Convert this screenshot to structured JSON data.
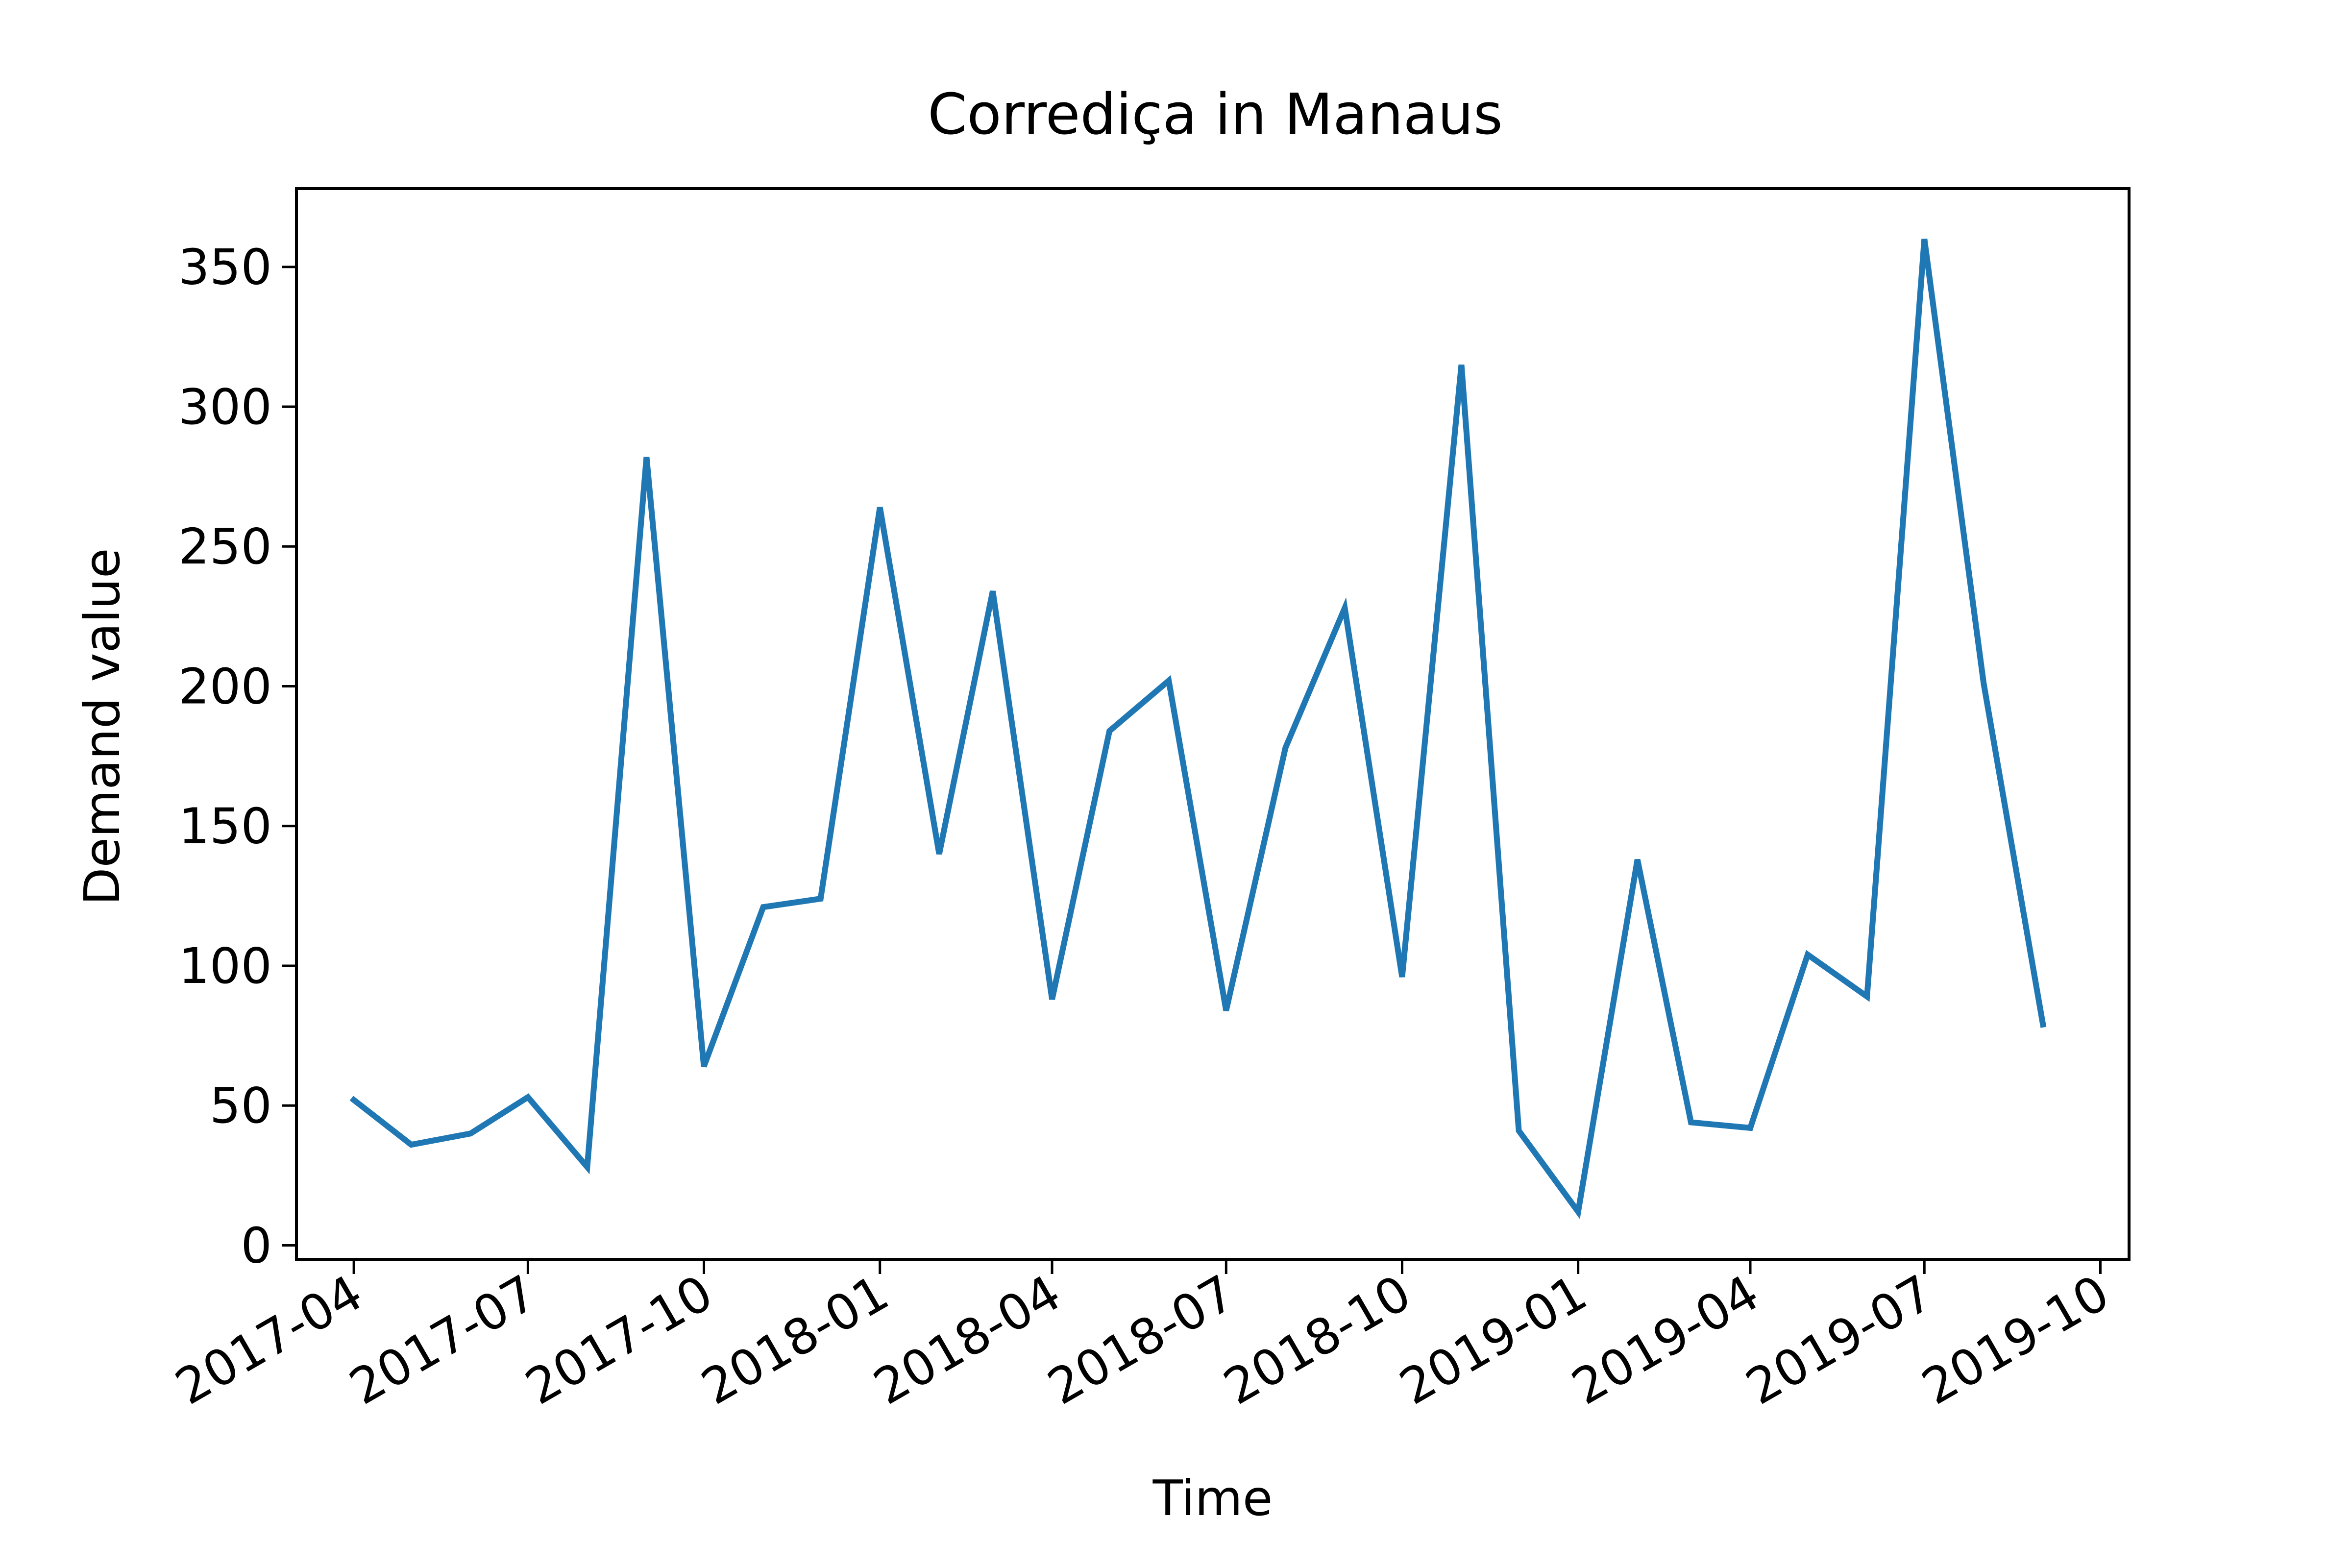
{
  "chart_data": {
    "type": "line",
    "title": "Corrediça in Manaus",
    "xlabel": "Time",
    "ylabel": "Demand value",
    "x": [
      "2017-04-01",
      "2017-05-01",
      "2017-06-01",
      "2017-07-01",
      "2017-08-01",
      "2017-09-01",
      "2017-10-01",
      "2017-11-01",
      "2017-12-01",
      "2018-01-01",
      "2018-02-01",
      "2018-03-01",
      "2018-04-01",
      "2018-05-01",
      "2018-06-01",
      "2018-07-01",
      "2018-08-01",
      "2018-09-01",
      "2018-10-01",
      "2018-11-01",
      "2018-12-01",
      "2019-01-01",
      "2019-02-01",
      "2019-03-01",
      "2019-04-01",
      "2019-05-01",
      "2019-06-01",
      "2019-07-01",
      "2019-08-01",
      "2019-09-01"
    ],
    "series": [
      {
        "values": [
          52,
          36,
          40,
          53,
          28,
          282,
          64,
          121,
          124,
          264,
          140,
          234,
          88,
          184,
          202,
          84,
          178,
          228,
          96,
          315,
          41,
          12,
          138,
          44,
          42,
          104,
          89,
          360,
          201,
          79
        ],
        "color": "#1f77b4"
      }
    ],
    "xticks": [
      "2017-04",
      "2017-07",
      "2017-10",
      "2018-01",
      "2018-04",
      "2018-07",
      "2018-10",
      "2019-01",
      "2019-04",
      "2019-07",
      "2019-10"
    ],
    "yticks": [
      0,
      50,
      100,
      150,
      200,
      250,
      300,
      350
    ],
    "xlim": [
      "2017-03-02",
      "2019-10-16"
    ],
    "ylim": [
      -5,
      378
    ],
    "grid": false,
    "legend": "none"
  }
}
